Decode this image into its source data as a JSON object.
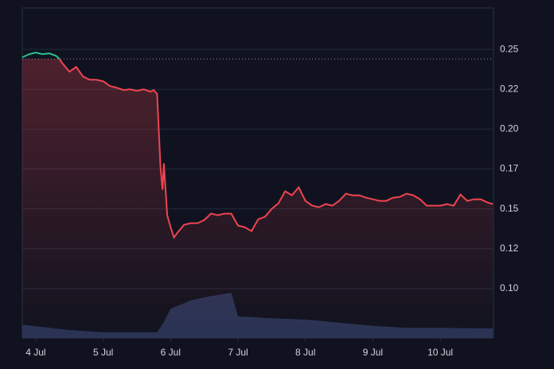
{
  "chart_data": {
    "type": "line",
    "x": [
      3.8,
      3.9,
      4.0,
      4.1,
      4.2,
      4.3,
      4.35,
      4.4,
      4.5,
      4.6,
      4.7,
      4.8,
      4.9,
      5.0,
      5.1,
      5.2,
      5.3,
      5.4,
      5.5,
      5.6,
      5.7,
      5.75,
      5.8,
      5.85,
      5.88,
      5.9,
      5.95,
      6.0,
      6.05,
      6.1,
      6.2,
      6.3,
      6.4,
      6.5,
      6.6,
      6.7,
      6.8,
      6.9,
      7.0,
      7.1,
      7.2,
      7.3,
      7.4,
      7.5,
      7.6,
      7.7,
      7.8,
      7.9,
      8.0,
      8.1,
      8.2,
      8.3,
      8.4,
      8.5,
      8.6,
      8.7,
      8.8,
      8.9,
      9.0,
      9.1,
      9.2,
      9.3,
      9.4,
      9.5,
      9.6,
      9.7,
      9.8,
      9.9,
      10.0,
      10.1,
      10.2,
      10.3,
      10.4,
      10.5,
      10.6,
      10.7,
      10.78
    ],
    "series": [
      {
        "color": "#ef4451",
        "up_color": "#26c48e",
        "values": [
          0.245,
          0.247,
          0.248,
          0.247,
          0.2475,
          0.246,
          0.244,
          0.241,
          0.236,
          0.239,
          0.233,
          0.231,
          0.231,
          0.23,
          0.227,
          0.226,
          0.2245,
          0.225,
          0.224,
          0.225,
          0.2235,
          0.2245,
          0.222,
          0.176,
          0.162,
          0.1785,
          0.146,
          0.1385,
          0.132,
          0.135,
          0.14,
          0.141,
          0.141,
          0.143,
          0.147,
          0.146,
          0.147,
          0.147,
          0.1395,
          0.1385,
          0.136,
          0.1435,
          0.145,
          0.15,
          0.1535,
          0.161,
          0.1585,
          0.1635,
          0.155,
          0.152,
          0.151,
          0.153,
          0.152,
          0.155,
          0.1595,
          0.1585,
          0.1585,
          0.157,
          0.156,
          0.155,
          0.155,
          0.157,
          0.1575,
          0.1595,
          0.1585,
          0.156,
          0.152,
          0.152,
          0.152,
          0.153,
          0.152,
          0.159,
          0.155,
          0.156,
          0.156,
          0.154,
          0.153
        ]
      }
    ],
    "baseline": 0.244,
    "volume": {
      "color": "#2e3a5e",
      "x": [
        3.8,
        4.5,
        5.0,
        5.8,
        5.9,
        6.0,
        6.3,
        6.6,
        6.9,
        7.0,
        7.5,
        8.0,
        8.5,
        9.0,
        9.5,
        10.0,
        10.78
      ],
      "values": [
        21,
        12.5,
        9,
        9,
        25,
        46,
        59,
        66,
        71,
        34,
        31,
        29,
        24,
        19,
        16,
        16,
        15
      ]
    },
    "y2lim": [
      0,
      100
    ],
    "xlim": [
      3.8,
      10.79
    ],
    "xticks": [
      {
        "value": 4,
        "label": "4 Jul"
      },
      {
        "value": 5,
        "label": "5 Jul"
      },
      {
        "value": 6,
        "label": "6 Jul"
      },
      {
        "value": 7,
        "label": "7 Jul"
      },
      {
        "value": 8,
        "label": "8 Jul"
      },
      {
        "value": 9,
        "label": "9 Jul"
      },
      {
        "value": 10,
        "label": "10 Jul"
      }
    ],
    "ylim": [
      0.069,
      0.276
    ],
    "yticks": [
      {
        "value": 0.1,
        "label": "0.10"
      },
      {
        "value": 0.125,
        "label": "0.12"
      },
      {
        "value": 0.15,
        "label": "0.15"
      },
      {
        "value": 0.175,
        "label": "0.17"
      },
      {
        "value": 0.2,
        "label": "0.20"
      },
      {
        "value": 0.225,
        "label": "0.22"
      },
      {
        "value": 0.25,
        "label": "0.25"
      }
    ],
    "grid": true
  }
}
